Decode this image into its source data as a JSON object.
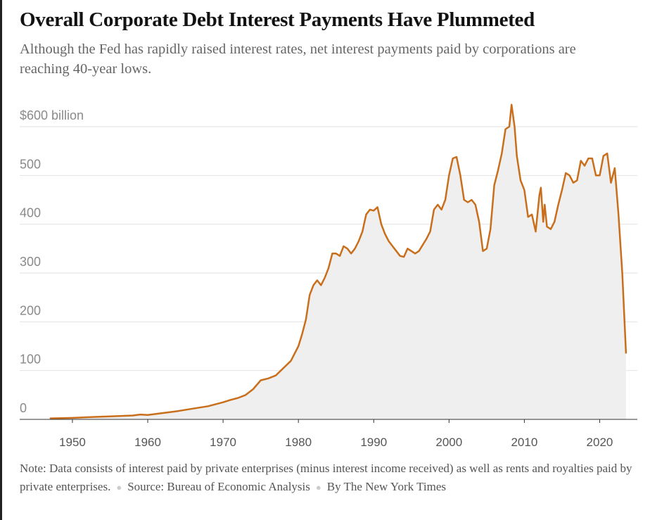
{
  "chart_data": {
    "type": "area",
    "title": "Overall Corporate Debt Interest Payments Have Plummeted",
    "subtitle": "Although the Fed has rapidly raised interest rates, net interest payments paid by corporations are reaching 40-year lows.",
    "note": "Note: Data consists of interest paid by private enterprises (minus interest income received) as well as rents and royalties paid by private enterprises.",
    "source": "Source: Bureau of Economic Analysis",
    "byline": "By The New York Times",
    "color": "#c96f1c",
    "fill": "#efefef",
    "grid": true,
    "xlim": [
      1943,
      2025
    ],
    "ylim": [
      0,
      600
    ],
    "xticks": [
      1950,
      1960,
      1970,
      1980,
      1990,
      2000,
      2010,
      2020
    ],
    "yticks": [
      0,
      100,
      200,
      300,
      400,
      500,
      {
        "value": 600,
        "label": "$600 billion"
      }
    ],
    "x": [
      1947,
      1950,
      1953,
      1955,
      1958,
      1959,
      1960,
      1962,
      1964,
      1966,
      1968,
      1970,
      1971,
      1972,
      1973,
      1974,
      1975,
      1976,
      1977,
      1978,
      1979,
      1980,
      1980.5,
      1981,
      1981.5,
      1982,
      1982.5,
      1983,
      1983.5,
      1984,
      1984.5,
      1985,
      1985.5,
      1986,
      1986.5,
      1987,
      1987.5,
      1988,
      1988.5,
      1989,
      1989.5,
      1990,
      1990.5,
      1991,
      1991.5,
      1992,
      1992.5,
      1993,
      1993.5,
      1994,
      1994.5,
      1995,
      1995.5,
      1996,
      1997,
      1997.5,
      1998,
      1998.5,
      1999,
      1999.5,
      2000,
      2000.5,
      2001,
      2001.5,
      2002,
      2002.5,
      2003,
      2003.5,
      2004,
      2004.5,
      2005,
      2005.5,
      2006,
      2006.5,
      2007,
      2007.5,
      2008,
      2008.3,
      2008.7,
      2009,
      2009.5,
      2010,
      2010.5,
      2011,
      2011.5,
      2012,
      2012.2,
      2012.5,
      2012.7,
      2013,
      2013.5,
      2014,
      2014.5,
      2015,
      2015.5,
      2016,
      2016.5,
      2017,
      2017.5,
      2018,
      2018.5,
      2019,
      2019.5,
      2020,
      2020.5,
      2021,
      2021.5,
      2022,
      2022.5,
      2023,
      2023.5
    ],
    "values": [
      2,
      3,
      5,
      6,
      8,
      10,
      9,
      13,
      17,
      22,
      27,
      35,
      40,
      44,
      50,
      62,
      80,
      84,
      90,
      105,
      120,
      150,
      175,
      205,
      255,
      275,
      285,
      275,
      290,
      310,
      340,
      340,
      335,
      355,
      350,
      340,
      350,
      365,
      385,
      420,
      430,
      428,
      435,
      400,
      380,
      365,
      355,
      345,
      335,
      333,
      350,
      345,
      340,
      345,
      370,
      385,
      430,
      440,
      430,
      450,
      500,
      535,
      538,
      500,
      450,
      445,
      450,
      440,
      405,
      345,
      350,
      390,
      480,
      510,
      545,
      595,
      600,
      645,
      600,
      540,
      490,
      470,
      415,
      420,
      385,
      460,
      475,
      405,
      440,
      395,
      390,
      405,
      440,
      470,
      505,
      500,
      485,
      490,
      530,
      520,
      535,
      535,
      500,
      500,
      540,
      545,
      485,
      515,
      420,
      300,
      135
    ]
  }
}
